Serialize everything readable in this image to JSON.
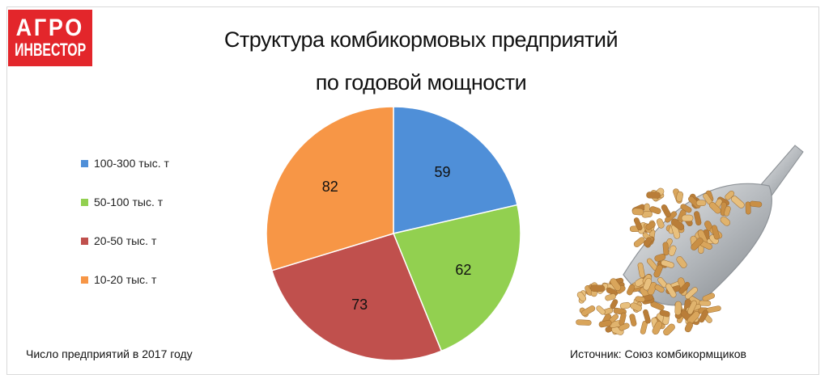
{
  "logo": {
    "line1": "АГРО",
    "line2": "ИНВЕСТОР"
  },
  "title_line1": "Структура комбикормовых предприятий",
  "title_line2": "по годовой мощности",
  "chart_data": {
    "type": "pie",
    "title": "Структура комбикормовых предприятий по годовой мощности",
    "categories": [
      "100-300 тыс. т",
      "50-100 тыс. т",
      "20-50 тыс. т",
      "10-20 тыс. т"
    ],
    "values": [
      59,
      62,
      73,
      82
    ],
    "colors": [
      "#4f8fd8",
      "#92d050",
      "#c0504d",
      "#f79646"
    ],
    "legend_position": "left"
  },
  "note_left": "Число предприятий в 2017 году",
  "note_right": "Источник: Союз комбикормщиков"
}
